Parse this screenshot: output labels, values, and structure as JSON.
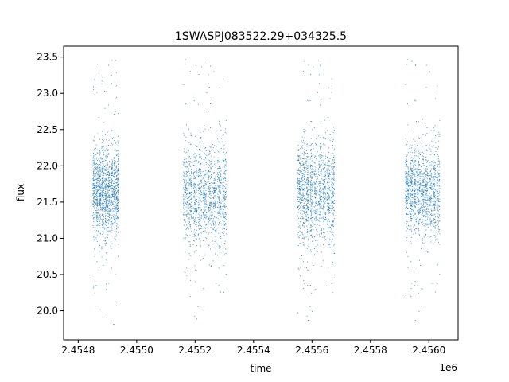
{
  "chart_data": {
    "type": "scatter",
    "title": "1SWASPJ083522.29+034325.5",
    "xlabel": "time",
    "ylabel": "flux",
    "x_offset_label": "1e6",
    "xlim": [
      2.45475,
      2.4561
    ],
    "ylim": [
      19.6,
      23.65
    ],
    "x_ticks": [
      2.4548,
      2.455,
      2.4552,
      2.4554,
      2.4556,
      2.4558,
      2.456
    ],
    "x_tick_labels": [
      "2.4548",
      "2.4550",
      "2.4552",
      "2.4554",
      "2.4556",
      "2.4558",
      "2.4560"
    ],
    "y_ticks": [
      20.0,
      20.5,
      21.0,
      21.5,
      22.0,
      22.5,
      23.0,
      23.5
    ],
    "y_tick_labels": [
      "20.0",
      "20.5",
      "21.0",
      "21.5",
      "22.0",
      "22.5",
      "23.0",
      "23.5"
    ],
    "grid": false,
    "point_color": "#1f77b4",
    "clusters": [
      {
        "x_start": 2.45485,
        "x_end": 2.45494,
        "y_center": 21.65,
        "y_spread": 0.3,
        "y_min": 19.8,
        "y_max": 23.5
      },
      {
        "x_start": 2.45516,
        "x_end": 2.45531,
        "y_center": 21.6,
        "y_spread": 0.35,
        "y_min": 19.8,
        "y_max": 23.5
      },
      {
        "x_start": 2.45555,
        "x_end": 2.45568,
        "y_center": 21.65,
        "y_spread": 0.35,
        "y_min": 19.8,
        "y_max": 23.5
      },
      {
        "x_start": 2.45592,
        "x_end": 2.45604,
        "y_center": 21.65,
        "y_spread": 0.3,
        "y_min": 19.8,
        "y_max": 23.5
      }
    ]
  }
}
